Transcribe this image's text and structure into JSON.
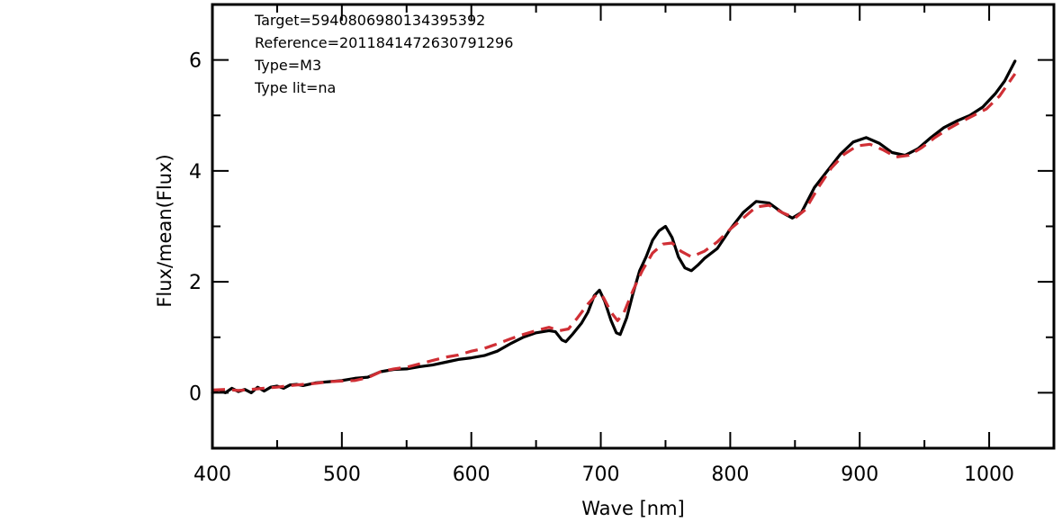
{
  "chart_data": {
    "type": "line",
    "xlabel": "Wave [nm]",
    "ylabel": "Flux/mean(Flux)",
    "xlim": [
      400,
      1050
    ],
    "ylim": [
      -1,
      7
    ],
    "x_ticks": [
      400,
      500,
      600,
      700,
      800,
      900,
      1000
    ],
    "x_tick_labels": [
      "400",
      "500",
      "600",
      "700",
      "800",
      "900",
      "1000"
    ],
    "y_ticks": [
      0,
      2,
      4,
      6
    ],
    "y_tick_labels": [
      "0",
      "2",
      "4",
      "6"
    ],
    "annotations": [
      "Target=5940806980134395392",
      "Reference=2011841472630791296",
      "Type=M3",
      "Type lit=na"
    ],
    "series": [
      {
        "color": "#000000",
        "style": "solid",
        "points": [
          [
            400,
            0.0
          ],
          [
            405,
            0.05
          ],
          [
            410,
            0.0
          ],
          [
            415,
            0.08
          ],
          [
            420,
            0.02
          ],
          [
            425,
            0.06
          ],
          [
            430,
            0.0
          ],
          [
            435,
            0.1
          ],
          [
            440,
            0.03
          ],
          [
            445,
            0.1
          ],
          [
            450,
            0.12
          ],
          [
            455,
            0.08
          ],
          [
            460,
            0.14
          ],
          [
            465,
            0.15
          ],
          [
            470,
            0.13
          ],
          [
            480,
            0.18
          ],
          [
            490,
            0.2
          ],
          [
            500,
            0.22
          ],
          [
            510,
            0.26
          ],
          [
            520,
            0.28
          ],
          [
            530,
            0.38
          ],
          [
            540,
            0.42
          ],
          [
            550,
            0.43
          ],
          [
            560,
            0.47
          ],
          [
            570,
            0.5
          ],
          [
            580,
            0.55
          ],
          [
            590,
            0.6
          ],
          [
            600,
            0.63
          ],
          [
            610,
            0.67
          ],
          [
            620,
            0.75
          ],
          [
            630,
            0.88
          ],
          [
            640,
            1.0
          ],
          [
            650,
            1.08
          ],
          [
            660,
            1.12
          ],
          [
            665,
            1.1
          ],
          [
            670,
            0.95
          ],
          [
            673,
            0.92
          ],
          [
            678,
            1.05
          ],
          [
            685,
            1.25
          ],
          [
            690,
            1.45
          ],
          [
            695,
            1.75
          ],
          [
            699,
            1.85
          ],
          [
            703,
            1.65
          ],
          [
            708,
            1.3
          ],
          [
            712,
            1.08
          ],
          [
            715,
            1.05
          ],
          [
            720,
            1.35
          ],
          [
            725,
            1.8
          ],
          [
            730,
            2.2
          ],
          [
            735,
            2.45
          ],
          [
            740,
            2.75
          ],
          [
            745,
            2.92
          ],
          [
            750,
            3.0
          ],
          [
            755,
            2.8
          ],
          [
            760,
            2.45
          ],
          [
            765,
            2.25
          ],
          [
            770,
            2.2
          ],
          [
            775,
            2.3
          ],
          [
            780,
            2.42
          ],
          [
            790,
            2.6
          ],
          [
            800,
            2.95
          ],
          [
            810,
            3.25
          ],
          [
            820,
            3.45
          ],
          [
            830,
            3.42
          ],
          [
            840,
            3.25
          ],
          [
            848,
            3.15
          ],
          [
            855,
            3.25
          ],
          [
            865,
            3.7
          ],
          [
            875,
            4.0
          ],
          [
            885,
            4.3
          ],
          [
            895,
            4.52
          ],
          [
            905,
            4.6
          ],
          [
            915,
            4.5
          ],
          [
            925,
            4.33
          ],
          [
            935,
            4.28
          ],
          [
            945,
            4.4
          ],
          [
            955,
            4.6
          ],
          [
            965,
            4.78
          ],
          [
            975,
            4.9
          ],
          [
            985,
            5.0
          ],
          [
            995,
            5.15
          ],
          [
            1005,
            5.4
          ],
          [
            1012,
            5.62
          ],
          [
            1020,
            5.98
          ]
        ]
      },
      {
        "color": "#d02f35",
        "style": "dashed",
        "points": [
          [
            400,
            0.05
          ],
          [
            410,
            0.06
          ],
          [
            420,
            0.04
          ],
          [
            430,
            0.06
          ],
          [
            440,
            0.08
          ],
          [
            450,
            0.1
          ],
          [
            460,
            0.13
          ],
          [
            470,
            0.15
          ],
          [
            480,
            0.17
          ],
          [
            490,
            0.2
          ],
          [
            500,
            0.21
          ],
          [
            510,
            0.22
          ],
          [
            520,
            0.27
          ],
          [
            530,
            0.38
          ],
          [
            540,
            0.43
          ],
          [
            550,
            0.46
          ],
          [
            560,
            0.52
          ],
          [
            570,
            0.58
          ],
          [
            580,
            0.64
          ],
          [
            590,
            0.68
          ],
          [
            600,
            0.75
          ],
          [
            610,
            0.8
          ],
          [
            620,
            0.88
          ],
          [
            630,
            0.97
          ],
          [
            640,
            1.05
          ],
          [
            650,
            1.12
          ],
          [
            660,
            1.18
          ],
          [
            668,
            1.12
          ],
          [
            675,
            1.15
          ],
          [
            682,
            1.35
          ],
          [
            690,
            1.6
          ],
          [
            697,
            1.78
          ],
          [
            702,
            1.72
          ],
          [
            708,
            1.45
          ],
          [
            713,
            1.3
          ],
          [
            718,
            1.45
          ],
          [
            725,
            1.85
          ],
          [
            732,
            2.2
          ],
          [
            740,
            2.52
          ],
          [
            748,
            2.68
          ],
          [
            755,
            2.7
          ],
          [
            762,
            2.55
          ],
          [
            770,
            2.45
          ],
          [
            780,
            2.55
          ],
          [
            790,
            2.72
          ],
          [
            800,
            2.95
          ],
          [
            810,
            3.15
          ],
          [
            820,
            3.35
          ],
          [
            830,
            3.38
          ],
          [
            840,
            3.25
          ],
          [
            850,
            3.15
          ],
          [
            858,
            3.3
          ],
          [
            868,
            3.7
          ],
          [
            878,
            4.05
          ],
          [
            888,
            4.3
          ],
          [
            898,
            4.45
          ],
          [
            908,
            4.48
          ],
          [
            918,
            4.38
          ],
          [
            928,
            4.25
          ],
          [
            938,
            4.28
          ],
          [
            948,
            4.42
          ],
          [
            958,
            4.6
          ],
          [
            968,
            4.75
          ],
          [
            978,
            4.88
          ],
          [
            988,
            5.0
          ],
          [
            998,
            5.12
          ],
          [
            1008,
            5.35
          ],
          [
            1020,
            5.75
          ]
        ]
      }
    ]
  }
}
